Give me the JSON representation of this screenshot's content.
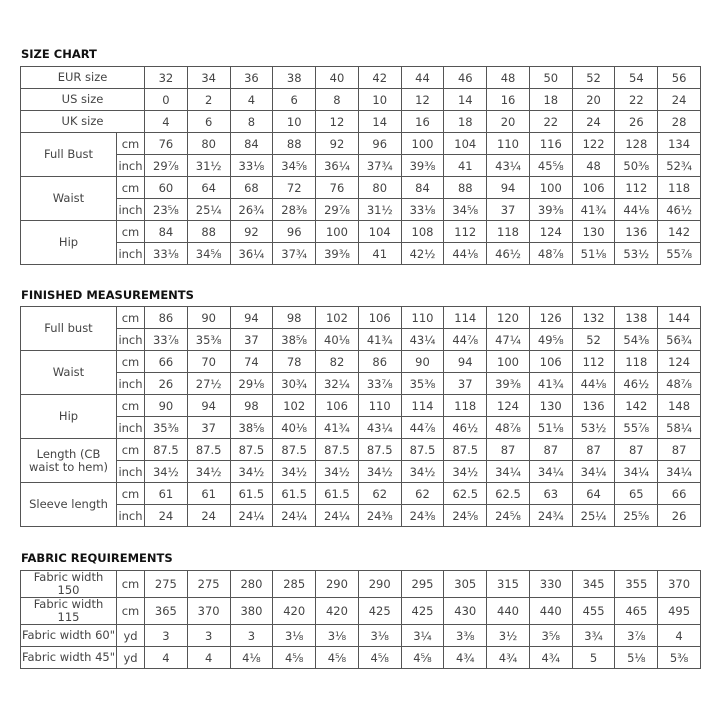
{
  "size_chart": {
    "title": "SIZE CHART",
    "size_rows": [
      {
        "label": "EUR size",
        "values": [
          "32",
          "34",
          "36",
          "38",
          "40",
          "42",
          "44",
          "46",
          "48",
          "50",
          "52",
          "54",
          "56"
        ]
      },
      {
        "label": "US size",
        "values": [
          "0",
          "2",
          "4",
          "6",
          "8",
          "10",
          "12",
          "14",
          "16",
          "18",
          "20",
          "22",
          "24"
        ]
      },
      {
        "label": "UK size",
        "values": [
          "4",
          "6",
          "8",
          "10",
          "12",
          "14",
          "16",
          "18",
          "20",
          "22",
          "24",
          "26",
          "28"
        ]
      }
    ],
    "measurements": [
      {
        "label": "Full Bust",
        "rows": [
          {
            "unit": "cm",
            "values": [
              "76",
              "80",
              "84",
              "88",
              "92",
              "96",
              "100",
              "104",
              "110",
              "116",
              "122",
              "128",
              "134"
            ]
          },
          {
            "unit": "inch",
            "values": [
              "29⅞",
              "31½",
              "33⅛",
              "34⅝",
              "36¼",
              "37¾",
              "39⅜",
              "41",
              "43¼",
              "45⅝",
              "48",
              "50⅜",
              "52¾"
            ]
          }
        ]
      },
      {
        "label": "Waist",
        "rows": [
          {
            "unit": "cm",
            "values": [
              "60",
              "64",
              "68",
              "72",
              "76",
              "80",
              "84",
              "88",
              "94",
              "100",
              "106",
              "112",
              "118"
            ]
          },
          {
            "unit": "inch",
            "values": [
              "23⅝",
              "25¼",
              "26¾",
              "28⅜",
              "29⅞",
              "31½",
              "33⅛",
              "34⅝",
              "37",
              "39⅜",
              "41¾",
              "44⅛",
              "46½"
            ]
          }
        ]
      },
      {
        "label": "Hip",
        "rows": [
          {
            "unit": "cm",
            "values": [
              "84",
              "88",
              "92",
              "96",
              "100",
              "104",
              "108",
              "112",
              "118",
              "124",
              "130",
              "136",
              "142"
            ]
          },
          {
            "unit": "inch",
            "values": [
              "33⅛",
              "34⅝",
              "36¼",
              "37¾",
              "39⅜",
              "41",
              "42½",
              "44⅛",
              "46½",
              "48⅞",
              "51⅛",
              "53½",
              "55⅞"
            ]
          }
        ]
      }
    ]
  },
  "finished_measurements": {
    "title": "FINISHED MEASUREMENTS",
    "measurements": [
      {
        "label": "Full bust",
        "rows": [
          {
            "unit": "cm",
            "values": [
              "86",
              "90",
              "94",
              "98",
              "102",
              "106",
              "110",
              "114",
              "120",
              "126",
              "132",
              "138",
              "144"
            ]
          },
          {
            "unit": "inch",
            "values": [
              "33⅞",
              "35⅜",
              "37",
              "38⅝",
              "40⅛",
              "41¾",
              "43¼",
              "44⅞",
              "47¼",
              "49⅝",
              "52",
              "54⅜",
              "56¾"
            ]
          }
        ]
      },
      {
        "label": "Waist",
        "rows": [
          {
            "unit": "cm",
            "values": [
              "66",
              "70",
              "74",
              "78",
              "82",
              "86",
              "90",
              "94",
              "100",
              "106",
              "112",
              "118",
              "124"
            ]
          },
          {
            "unit": "inch",
            "values": [
              "26",
              "27½",
              "29⅛",
              "30¾",
              "32¼",
              "33⅞",
              "35⅜",
              "37",
              "39⅜",
              "41¾",
              "44⅛",
              "46½",
              "48⅞"
            ]
          }
        ]
      },
      {
        "label": "Hip",
        "rows": [
          {
            "unit": "cm",
            "values": [
              "90",
              "94",
              "98",
              "102",
              "106",
              "110",
              "114",
              "118",
              "124",
              "130",
              "136",
              "142",
              "148"
            ]
          },
          {
            "unit": "inch",
            "values": [
              "35⅜",
              "37",
              "38⅝",
              "40⅛",
              "41¾",
              "43¼",
              "44⅞",
              "46½",
              "48⅞",
              "51⅛",
              "53½",
              "55⅞",
              "58¼"
            ]
          }
        ]
      },
      {
        "label": "Length (CB waist to hem)",
        "rows": [
          {
            "unit": "cm",
            "values": [
              "87.5",
              "87.5",
              "87.5",
              "87.5",
              "87.5",
              "87.5",
              "87.5",
              "87.5",
              "87",
              "87",
              "87",
              "87",
              "87"
            ]
          },
          {
            "unit": "inch",
            "values": [
              "34½",
              "34½",
              "34½",
              "34½",
              "34½",
              "34½",
              "34½",
              "34½",
              "34¼",
              "34¼",
              "34¼",
              "34¼",
              "34¼"
            ]
          }
        ]
      },
      {
        "label": "Sleeve length",
        "rows": [
          {
            "unit": "cm",
            "values": [
              "61",
              "61",
              "61.5",
              "61.5",
              "61.5",
              "62",
              "62",
              "62.5",
              "62.5",
              "63",
              "64",
              "65",
              "66"
            ]
          },
          {
            "unit": "inch",
            "values": [
              "24",
              "24",
              "24¼",
              "24¼",
              "24¼",
              "24⅜",
              "24⅜",
              "24⅝",
              "24⅝",
              "24¾",
              "25¼",
              "25⅝",
              "26"
            ]
          }
        ]
      }
    ]
  },
  "fabric_requirements": {
    "title": "FABRIC REQUIREMENTS",
    "rows": [
      {
        "label": "Fabric width 150",
        "unit": "cm",
        "values": [
          "275",
          "275",
          "280",
          "285",
          "290",
          "290",
          "295",
          "305",
          "315",
          "330",
          "345",
          "355",
          "370"
        ]
      },
      {
        "label": "Fabric width 115",
        "unit": "cm",
        "values": [
          "365",
          "370",
          "380",
          "420",
          "420",
          "425",
          "425",
          "430",
          "440",
          "440",
          "455",
          "465",
          "495"
        ]
      },
      {
        "label": "Fabric width 60\"",
        "unit": "yd",
        "values": [
          "3",
          "3",
          "3",
          "3⅛",
          "3⅛",
          "3⅛",
          "3¼",
          "3⅜",
          "3½",
          "3⅝",
          "3¾",
          "3⅞",
          "4"
        ]
      },
      {
        "label": "Fabric width 45\"",
        "unit": "yd",
        "values": [
          "4",
          "4",
          "4⅛",
          "4⅝",
          "4⅝",
          "4⅝",
          "4⅝",
          "4¾",
          "4¾",
          "4¾",
          "5",
          "5⅛",
          "5⅜"
        ]
      }
    ]
  }
}
